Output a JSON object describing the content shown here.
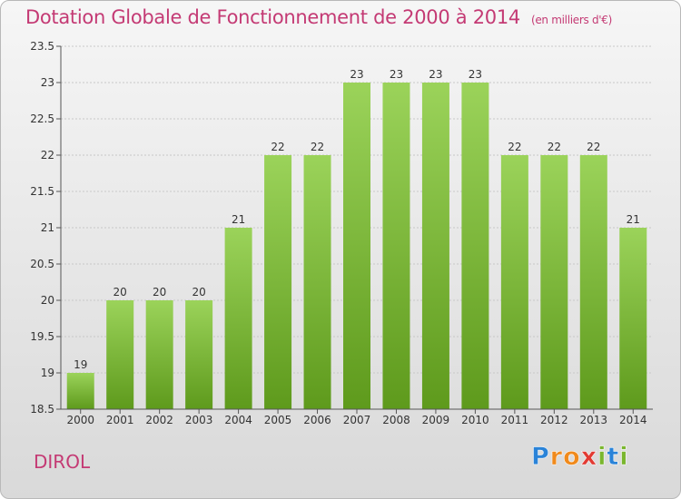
{
  "title": "Dotation Globale de Fonctionnement de 2000 à 2014",
  "unit": "(en milliers d'€)",
  "commune": "DIROL",
  "logo": {
    "letters": [
      "P",
      "r",
      "o",
      "x",
      "i",
      "t",
      "i"
    ],
    "colors": [
      "#2a83d8",
      "#f08a1c",
      "#f08a1c",
      "#e23b33",
      "#7ab62e",
      "#2a83d8",
      "#7ab62e"
    ]
  },
  "colors": {
    "bar_top": "#9bd35a",
    "bar_bottom": "#5e9a1c",
    "title": "#c43a74"
  },
  "chart_data": {
    "type": "bar",
    "categories": [
      "2000",
      "2001",
      "2002",
      "2003",
      "2004",
      "2005",
      "2006",
      "2007",
      "2008",
      "2009",
      "2010",
      "2011",
      "2012",
      "2013",
      "2014"
    ],
    "values": [
      19,
      20,
      20,
      20,
      21,
      22,
      22,
      23,
      23,
      23,
      23,
      22,
      22,
      22,
      21
    ],
    "value_labels": [
      "19",
      "20",
      "20",
      "20",
      "21",
      "22",
      "22",
      "23",
      "23",
      "23",
      "23",
      "22",
      "22",
      "22",
      "21"
    ],
    "y_ticks": [
      "18.5",
      "19",
      "19.5",
      "20",
      "20.5",
      "21",
      "21.5",
      "22",
      "22.5",
      "23",
      "23.5"
    ],
    "ylim": [
      18.5,
      23.5
    ],
    "grid": true,
    "legend": "none"
  }
}
